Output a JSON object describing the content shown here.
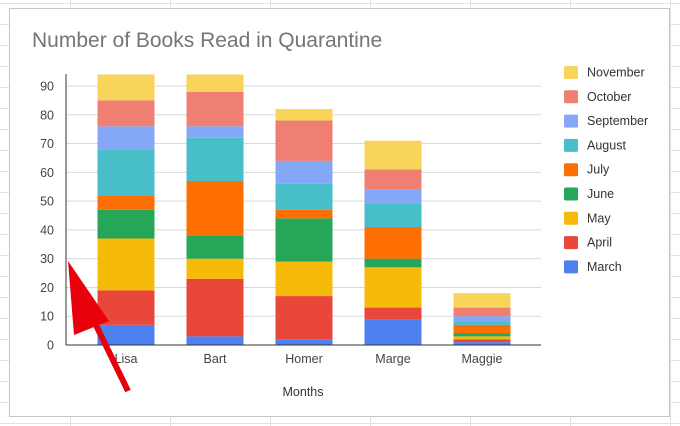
{
  "chart_data": {
    "type": "bar",
    "stacked": true,
    "title": "Number of Books Read in Quarantine",
    "xlabel": "Months",
    "ylabel": "",
    "ylim": [
      0,
      95
    ],
    "yticks": [
      0,
      10,
      20,
      30,
      40,
      50,
      60,
      70,
      80,
      90
    ],
    "grid": true,
    "legend_position": "right",
    "categories": [
      "Lisa",
      "Bart",
      "Homer",
      "Marge",
      "Maggie"
    ],
    "series": [
      {
        "name": "March",
        "color": "#4f80f0",
        "values": [
          7,
          3,
          2,
          9,
          1
        ]
      },
      {
        "name": "April",
        "color": "#e8473a",
        "values": [
          12,
          20,
          15,
          4,
          1
        ]
      },
      {
        "name": "May",
        "color": "#f6bb08",
        "values": [
          18,
          7,
          12,
          14,
          1
        ]
      },
      {
        "name": "June",
        "color": "#25a659",
        "values": [
          10,
          8,
          15,
          3,
          1
        ]
      },
      {
        "name": "July",
        "color": "#fd6f02",
        "values": [
          5,
          19,
          3,
          11,
          3
        ]
      },
      {
        "name": "August",
        "color": "#47bec8",
        "values": [
          16,
          15,
          9,
          8,
          1
        ]
      },
      {
        "name": "September",
        "color": "#84a8f6",
        "values": [
          8,
          4,
          8,
          5,
          2
        ]
      },
      {
        "name": "October",
        "color": "#ef7e73",
        "values": [
          9,
          12,
          14,
          7,
          3
        ]
      },
      {
        "name": "November",
        "color": "#f9d45b",
        "values": [
          9,
          6,
          4,
          10,
          5
        ]
      }
    ],
    "annotations": [
      {
        "type": "arrow",
        "color": "#e8000b"
      }
    ]
  }
}
